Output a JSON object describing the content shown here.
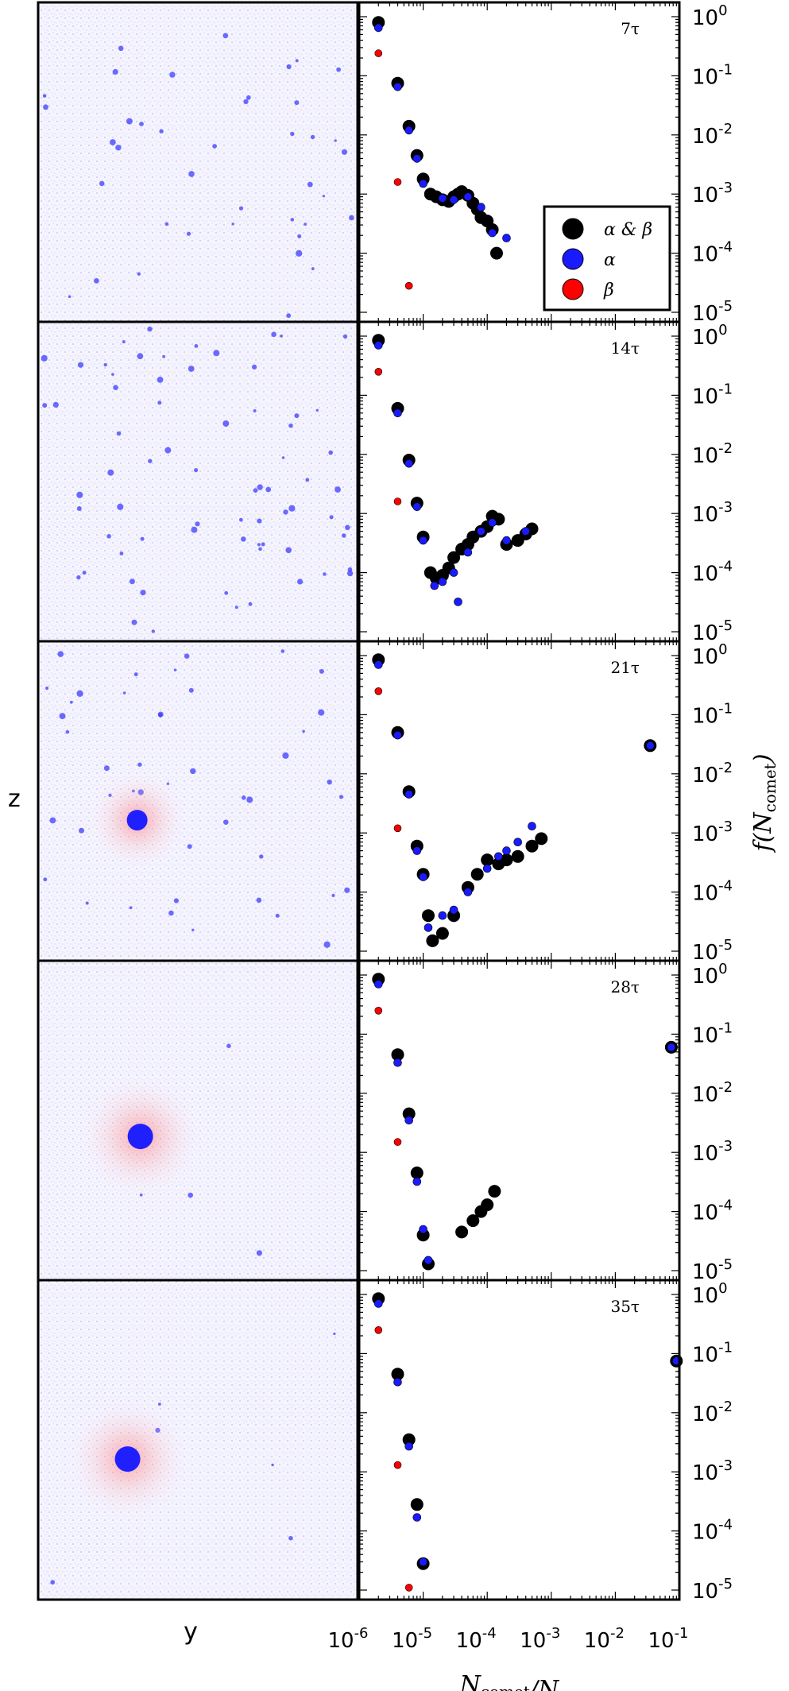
{
  "figure": {
    "side_labels": {
      "z": "z",
      "y": "y"
    },
    "colors": {
      "alpha_beta": "#000000",
      "alpha": "#1a1aff",
      "beta": "#ff0000",
      "particles_blue": "#3c3cff",
      "particles_red": "#ff6060"
    }
  },
  "chart_data": {
    "type": "scatter",
    "xlabel": "N_comet/N_tot",
    "ylabel": "f(N_comet)",
    "xscale": "log",
    "yscale": "log",
    "xlim": [
      1e-06,
      0.1
    ],
    "ylim": [
      1e-05,
      1
    ],
    "x_tick_labels": [
      {
        "base": "10",
        "exp": "-6"
      },
      {
        "base": "10",
        "exp": "-5"
      },
      {
        "base": "10",
        "exp": "-4"
      },
      {
        "base": "10",
        "exp": "-3"
      },
      {
        "base": "10",
        "exp": "-2"
      },
      {
        "base": "10",
        "exp": "-1"
      }
    ],
    "y_tick_labels": [
      {
        "base": "10",
        "exp": "0"
      },
      {
        "base": "10",
        "exp": "-1"
      },
      {
        "base": "10",
        "exp": "-2"
      },
      {
        "base": "10",
        "exp": "-3"
      },
      {
        "base": "10",
        "exp": "-4"
      },
      {
        "base": "10",
        "exp": "-5"
      }
    ],
    "legend": {
      "placement": "right, first panel",
      "entries": [
        {
          "label": "α & β",
          "color": "#000000"
        },
        {
          "label": "α",
          "color": "#1a1aff"
        },
        {
          "label": "β",
          "color": "#ff0000"
        }
      ]
    },
    "panels": [
      {
        "time_label": "7τ",
        "series": [
          {
            "name": "α & β",
            "x": [
              2e-06,
              4e-06,
              6e-06,
              8e-06,
              1e-05,
              1.3e-05,
              1.6e-05,
              2e-05,
              2.5e-05,
              3e-05,
              3.5e-05,
              4e-05,
              5e-05,
              6e-05,
              7e-05,
              8e-05,
              0.0001,
              0.00012,
              0.00014
            ],
            "y": [
              0.8,
              0.075,
              0.014,
              0.0045,
              0.0018,
              0.001,
              0.0009,
              0.0008,
              0.00075,
              0.0009,
              0.001,
              0.0011,
              0.00095,
              0.0007,
              0.00055,
              0.0004,
              0.00035,
              0.00025,
              0.0001
            ]
          },
          {
            "name": "α",
            "x": [
              2e-06,
              4e-06,
              6e-06,
              8e-06,
              1e-05,
              2e-05,
              3e-05,
              5e-05,
              8e-05,
              0.00012,
              0.0002
            ],
            "y": [
              0.65,
              0.065,
              0.012,
              0.004,
              0.0015,
              0.00085,
              0.0008,
              0.0009,
              0.0006,
              0.00022,
              0.00018
            ]
          },
          {
            "name": "β",
            "x": [
              2e-06,
              4e-06,
              6e-06
            ],
            "y": [
              0.24,
              0.0016,
              2.8e-05
            ]
          }
        ]
      },
      {
        "time_label": "14τ",
        "series": [
          {
            "name": "α & β",
            "x": [
              2e-06,
              4e-06,
              6e-06,
              8e-06,
              1e-05,
              1.3e-05,
              1.6e-05,
              2e-05,
              2.5e-05,
              3e-05,
              4e-05,
              5e-05,
              6e-05,
              8e-05,
              0.0001,
              0.00012,
              0.00015,
              0.0002,
              0.0003,
              0.0004,
              0.0005
            ],
            "y": [
              0.85,
              0.06,
              0.008,
              0.0015,
              0.0004,
              0.0001,
              8e-05,
              9e-05,
              0.00012,
              0.00018,
              0.00025,
              0.0003,
              0.0004,
              0.0005,
              0.0006,
              0.0009,
              0.0008,
              0.0003,
              0.00035,
              0.00045,
              0.00055
            ]
          },
          {
            "name": "α",
            "x": [
              2e-06,
              4e-06,
              6e-06,
              8e-06,
              1e-05,
              1.5e-05,
              2e-05,
              3e-05,
              3.5e-05,
              5e-05,
              8e-05,
              0.00012,
              0.0002,
              0.0004
            ],
            "y": [
              0.7,
              0.05,
              0.007,
              0.0013,
              0.00035,
              6e-05,
              7e-05,
              0.0001,
              3.2e-05,
              0.00022,
              0.0005,
              0.0007,
              0.00035,
              0.0005
            ]
          },
          {
            "name": "β",
            "x": [
              2e-06,
              4e-06
            ],
            "y": [
              0.25,
              0.0016
            ]
          }
        ]
      },
      {
        "time_label": "21τ",
        "series": [
          {
            "name": "α & β",
            "x": [
              2e-06,
              4e-06,
              6e-06,
              8e-06,
              1e-05,
              1.2e-05,
              1.4e-05,
              2e-05,
              3e-05,
              5e-05,
              7e-05,
              0.0001,
              0.00015,
              0.0002,
              0.0003,
              0.0005,
              0.0007,
              0.035
            ],
            "y": [
              0.85,
              0.05,
              0.005,
              0.0006,
              0.0002,
              4e-05,
              1.5e-05,
              2e-05,
              4e-05,
              0.00012,
              0.0002,
              0.00035,
              0.0003,
              0.00035,
              0.0004,
              0.0006,
              0.0008,
              0.03
            ]
          },
          {
            "name": "α",
            "x": [
              2e-06,
              4e-06,
              6e-06,
              8e-06,
              1e-05,
              1.2e-05,
              2e-05,
              3e-05,
              5e-05,
              0.0001,
              0.00015,
              0.0002,
              0.0003,
              0.0005,
              0.035
            ],
            "y": [
              0.7,
              0.045,
              0.0045,
              0.0005,
              0.00018,
              2.5e-05,
              4e-05,
              5e-05,
              0.0001,
              0.00025,
              0.0004,
              0.0005,
              0.0007,
              0.0013,
              0.03
            ]
          },
          {
            "name": "β",
            "x": [
              2e-06,
              4e-06
            ],
            "y": [
              0.25,
              0.0012
            ]
          }
        ]
      },
      {
        "time_label": "28τ",
        "series": [
          {
            "name": "α & β",
            "x": [
              2e-06,
              4e-06,
              6e-06,
              8e-06,
              1e-05,
              1.2e-05,
              4e-05,
              6e-05,
              8e-05,
              0.0001,
              0.00013,
              0.075
            ],
            "y": [
              0.85,
              0.045,
              0.0045,
              0.00045,
              4e-05,
              1.3e-05,
              4.5e-05,
              7e-05,
              0.0001,
              0.00013,
              0.00022,
              0.06
            ]
          },
          {
            "name": "α",
            "x": [
              2e-06,
              4e-06,
              6e-06,
              8e-06,
              1e-05,
              1.2e-05,
              0.075
            ],
            "y": [
              0.7,
              0.033,
              0.0035,
              0.00032,
              5e-05,
              1.5e-05,
              0.06
            ]
          },
          {
            "name": "β",
            "x": [
              2e-06,
              4e-06
            ],
            "y": [
              0.25,
              0.0015
            ]
          }
        ]
      },
      {
        "time_label": "35τ",
        "series": [
          {
            "name": "α & β",
            "x": [
              2e-06,
              4e-06,
              6e-06,
              8e-06,
              1e-05,
              0.09
            ],
            "y": [
              0.85,
              0.045,
              0.0035,
              0.00028,
              2.8e-05,
              0.075
            ]
          },
          {
            "name": "α",
            "x": [
              2e-06,
              4e-06,
              6e-06,
              8e-06,
              1e-05,
              0.09
            ],
            "y": [
              0.7,
              0.033,
              0.0027,
              0.00017,
              3e-05,
              0.075
            ]
          },
          {
            "name": "β",
            "x": [
              2e-06,
              4e-06,
              6e-06
            ],
            "y": [
              0.25,
              0.0013,
              1.1e-05
            ]
          }
        ]
      }
    ]
  }
}
